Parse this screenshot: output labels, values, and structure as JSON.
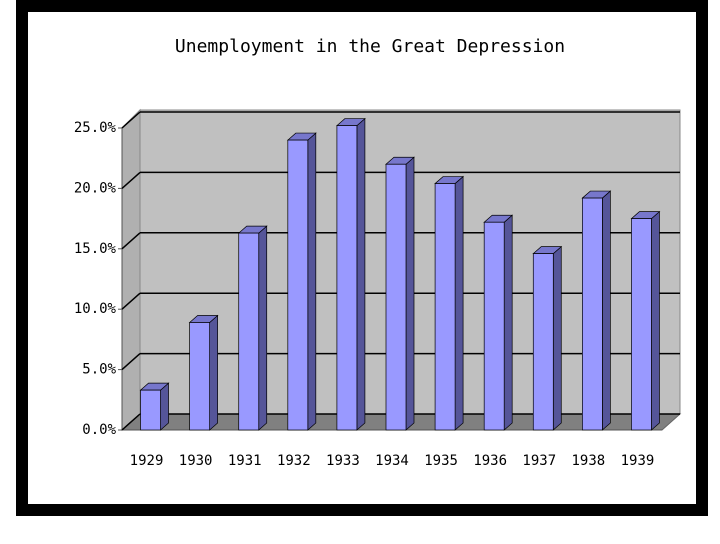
{
  "chart_data": {
    "type": "bar3d",
    "title": "Unemployment in the Great Depression",
    "categories": [
      "1929",
      "1930",
      "1931",
      "1932",
      "1933",
      "1934",
      "1935",
      "1936",
      "1937",
      "1938",
      "1939"
    ],
    "values": [
      3.3,
      8.9,
      16.3,
      24.0,
      25.2,
      22.0,
      20.4,
      17.2,
      14.6,
      19.2,
      17.5
    ],
    "color": "#9999ff",
    "ylim": [
      0,
      25
    ],
    "yticks": [
      {
        "value": 0,
        "label": "0.0%"
      },
      {
        "value": 5,
        "label": "5.0%"
      },
      {
        "value": 10,
        "label": "10.0%"
      },
      {
        "value": 15,
        "label": "15.0%"
      },
      {
        "value": 20,
        "label": "20.0%"
      },
      {
        "value": 25,
        "label": "25.0%"
      }
    ],
    "grid": true
  }
}
